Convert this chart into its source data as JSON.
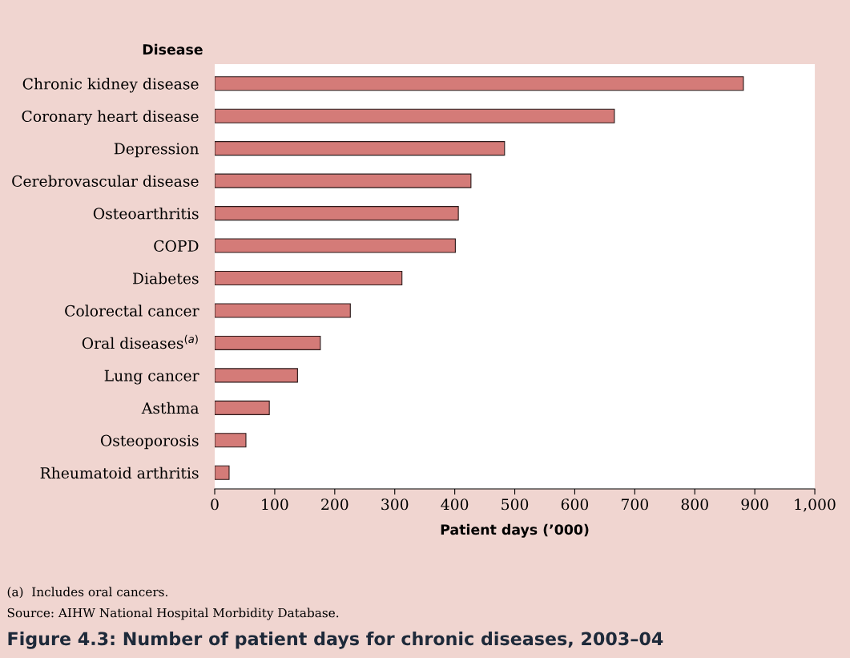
{
  "chart_data": {
    "type": "bar",
    "orientation": "horizontal",
    "title": "Figure 4.3: Number of patient days for chronic diseases, 2003–04",
    "xlabel": "Patient days (’000)",
    "ylabel": "Disease",
    "categories": [
      "Chronic kidney disease",
      "Coronary heart disease",
      "Depression",
      "Cerebrovascular disease",
      "Osteoarthritis",
      "COPD",
      "Diabetes",
      "Colorectal cancer",
      "Oral diseases$^{(a)}$",
      "Lung cancer",
      "Asthma",
      "Osteoporosis",
      "Rheumatoid arthritis"
    ],
    "values": [
      881,
      666,
      483,
      427,
      406,
      401,
      312,
      226,
      176,
      138,
      91,
      52,
      24
    ],
    "color": "#d47b78",
    "xlim": [
      0,
      1000
    ],
    "xticks": [
      0,
      100,
      200,
      300,
      400,
      500,
      600,
      700,
      800,
      900,
      {
        "value": 1000,
        "label": "1,000"
      }
    ],
    "grid": false,
    "legend": false,
    "annotations": [
      "(a)  Includes oral cancers.",
      "Source: AIHW National Hospital Morbidity Database."
    ]
  }
}
